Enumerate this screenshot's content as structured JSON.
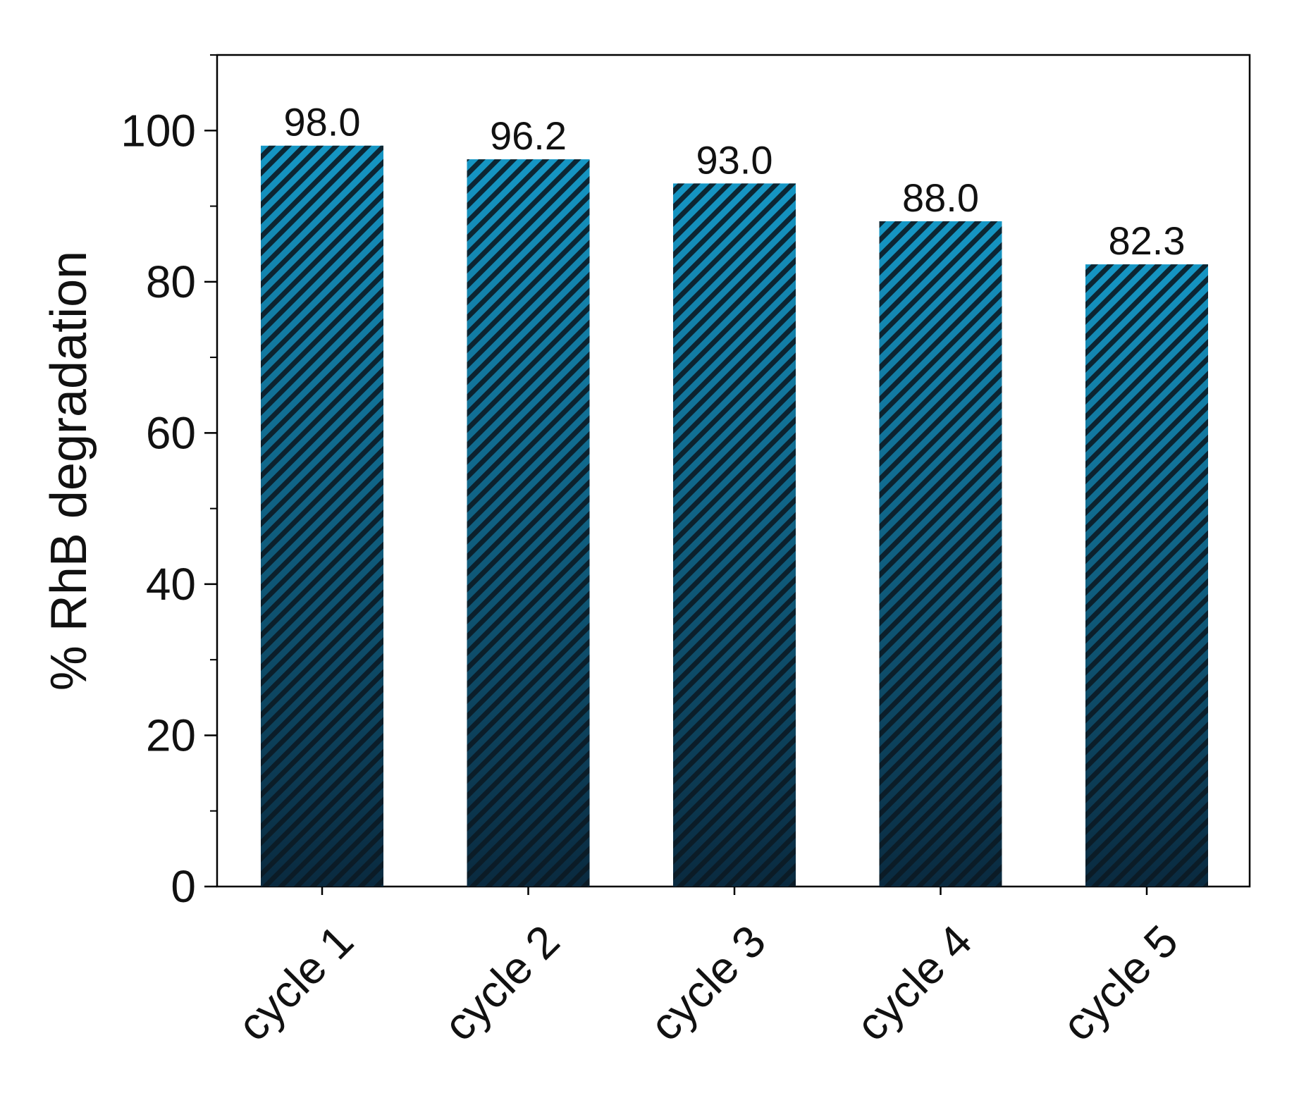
{
  "chart_data": {
    "type": "bar",
    "title": "",
    "xlabel": "",
    "ylabel": "% RhB degradation",
    "categories": [
      "cycle 1",
      "cycle 2",
      "cycle 3",
      "cycle 4",
      "cycle 5"
    ],
    "values": [
      98.0,
      96.2,
      93.0,
      88.0,
      82.3
    ],
    "value_labels": [
      "98.0",
      "96.2",
      "93.0",
      "88.0",
      "82.3"
    ],
    "ylim": [
      0,
      110
    ],
    "yticks": [
      0,
      20,
      40,
      60,
      80,
      100
    ],
    "ytick_labels": [
      "0",
      "20",
      "40",
      "60",
      "80",
      "100"
    ],
    "minor_ytick_step": 10,
    "grid": false,
    "legend": "none",
    "bar_fill_top": "#1596c4",
    "bar_fill_bottom": "#0a2a3f",
    "hatch_color": "#0b1a24"
  }
}
